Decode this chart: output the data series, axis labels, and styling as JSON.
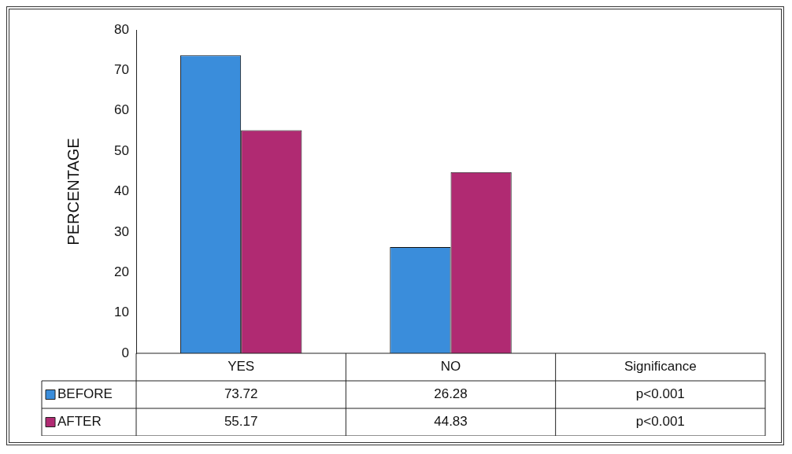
{
  "chart_data": {
    "type": "bar",
    "ylabel": "PERCENTAGE",
    "categories": [
      "YES",
      "NO",
      "Significance"
    ],
    "series": [
      {
        "name": "BEFORE",
        "color": "#3a8ddb",
        "values": [
          73.72,
          26.28,
          null
        ],
        "value_labels": [
          "73.72",
          "26.28",
          "p<0.001"
        ]
      },
      {
        "name": "AFTER",
        "color": "#b02a72",
        "values": [
          55.17,
          44.83,
          null
        ],
        "value_labels": [
          "55.17",
          "44.83",
          "p<0.001"
        ]
      }
    ],
    "ylim": [
      0,
      80
    ],
    "yticks": [
      0,
      10,
      20,
      30,
      40,
      50,
      60,
      70,
      80
    ],
    "grid": false,
    "legend": "bottom left"
  }
}
